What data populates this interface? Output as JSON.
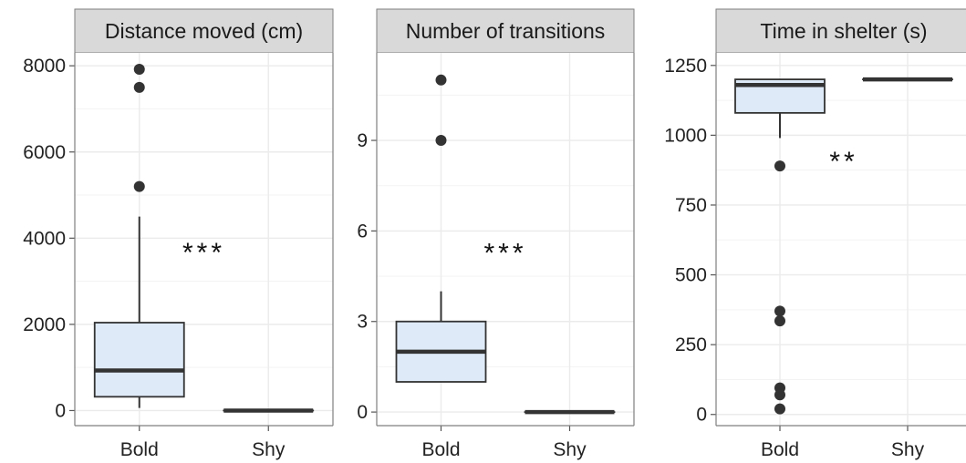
{
  "chart_data": [
    {
      "type": "box",
      "title": "Distance moved (cm)",
      "categories": [
        "Bold",
        "Shy"
      ],
      "yticks": [
        0,
        2000,
        4000,
        6000,
        8000
      ],
      "ylim": [
        -350,
        8300
      ],
      "grid": true,
      "boxes": [
        {
          "category": "Bold",
          "q1": 320,
          "median": 930,
          "q3": 2040,
          "whisker_low": 60,
          "whisker_high": 4500,
          "outliers": [
            5200,
            7500,
            7920
          ]
        },
        {
          "category": "Shy",
          "q1": 0,
          "median": 0,
          "q3": 0,
          "whisker_low": 0,
          "whisker_high": 0,
          "outliers": []
        }
      ],
      "annotation": "***",
      "annotation_y": 3750
    },
    {
      "type": "box",
      "title": "Number of transitions",
      "categories": [
        "Bold",
        "Shy"
      ],
      "yticks": [
        0,
        3,
        6,
        9
      ],
      "ylim": [
        -0.45,
        11.9
      ],
      "grid": true,
      "boxes": [
        {
          "category": "Bold",
          "q1": 1,
          "median": 2,
          "q3": 3,
          "whisker_low": 1,
          "whisker_high": 4,
          "outliers": [
            9,
            11
          ]
        },
        {
          "category": "Shy",
          "q1": 0,
          "median": 0,
          "q3": 0,
          "whisker_low": 0,
          "whisker_high": 0,
          "outliers": []
        }
      ],
      "annotation": "***",
      "annotation_y": 5.4
    },
    {
      "type": "box",
      "title": "Time in shelter (s)",
      "categories": [
        "Bold",
        "Shy"
      ],
      "yticks": [
        0,
        250,
        500,
        750,
        1000,
        1250
      ],
      "ylim": [
        -40,
        1295
      ],
      "grid": true,
      "boxes": [
        {
          "category": "Bold",
          "q1": 1080,
          "median": 1180,
          "q3": 1200,
          "whisker_low": 990,
          "whisker_high": 1200,
          "outliers": [
            890,
            370,
            335,
            95,
            70,
            20
          ]
        },
        {
          "category": "Shy",
          "q1": 1200,
          "median": 1200,
          "q3": 1200,
          "whisker_low": 1200,
          "whisker_high": 1200,
          "outliers": []
        }
      ],
      "annotation": "**",
      "annotation_y": 920
    }
  ]
}
